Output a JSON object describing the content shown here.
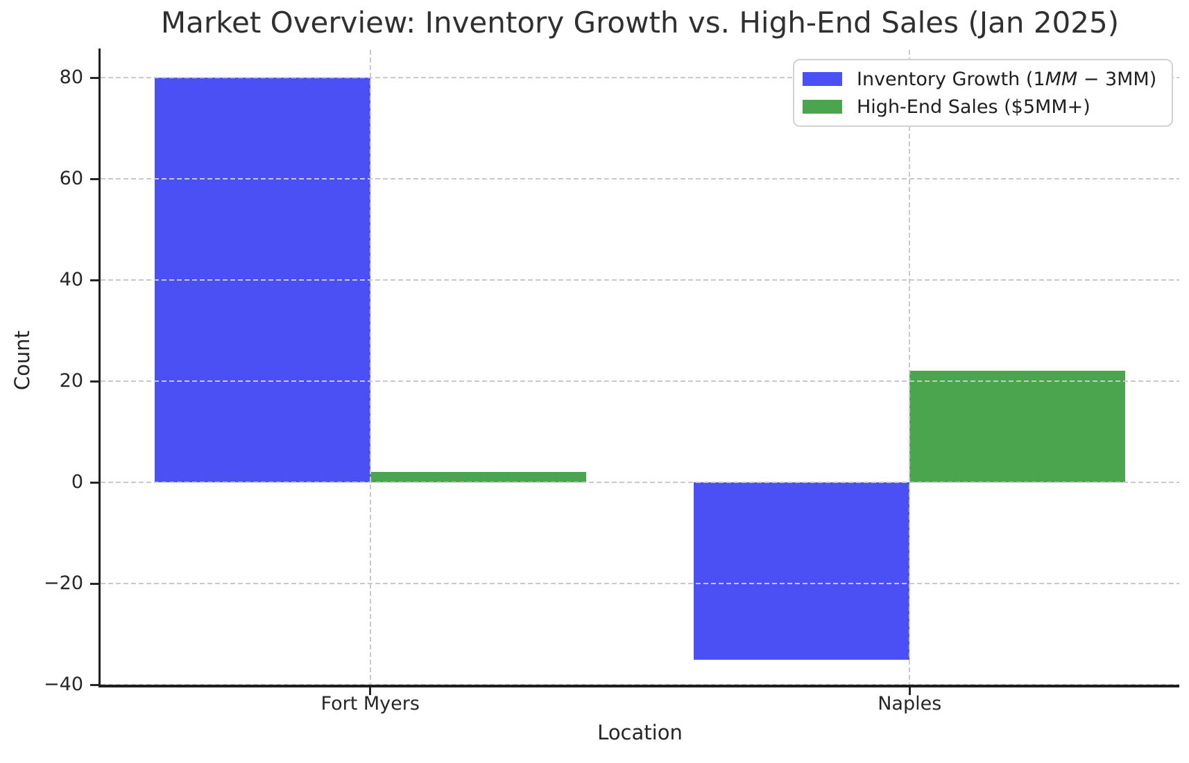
{
  "chart_data": {
    "type": "bar",
    "title": "Market Overview: Inventory Growth vs. High-End Sales (Jan 2025)",
    "xlabel": "Location",
    "ylabel": "Count",
    "categories": [
      "Fort Myers",
      "Naples"
    ],
    "series": [
      {
        "name": "Inventory Growth (1MM − 3MM)",
        "label_segments": [
          {
            "text": "Inventory Growth (1",
            "italic": false
          },
          {
            "text": "MM",
            "italic": true
          },
          {
            "text": " − 3MM)",
            "italic": false
          }
        ],
        "color": "#4b50f5",
        "values": [
          80,
          -35
        ]
      },
      {
        "name": "High-End Sales ($5MM+)",
        "label_segments": [
          {
            "text": "High-End Sales ($5MM+)",
            "italic": false
          }
        ],
        "color": "#4aa54e",
        "values": [
          2,
          22
        ]
      }
    ],
    "ylim": [
      -40,
      85.5
    ],
    "yticks": [
      {
        "value": 80,
        "label": "80"
      },
      {
        "value": 60,
        "label": "60"
      },
      {
        "value": 40,
        "label": "40"
      },
      {
        "value": 20,
        "label": "20"
      },
      {
        "value": 0,
        "label": "0"
      },
      {
        "value": -20,
        "label": "−20"
      },
      {
        "value": -40,
        "label": "−40"
      }
    ],
    "bar_width_fraction": 0.4,
    "grid": true,
    "grid_style": "dashed",
    "grid_on_top": true,
    "legend_position": "upper right",
    "colors": {
      "grid": "#c9c9c9",
      "spine": "#1f1f1f",
      "tick_text": "#262626",
      "title_text": "#303030",
      "background": "#ffffff",
      "legend_border": "#d2d2d2"
    }
  }
}
